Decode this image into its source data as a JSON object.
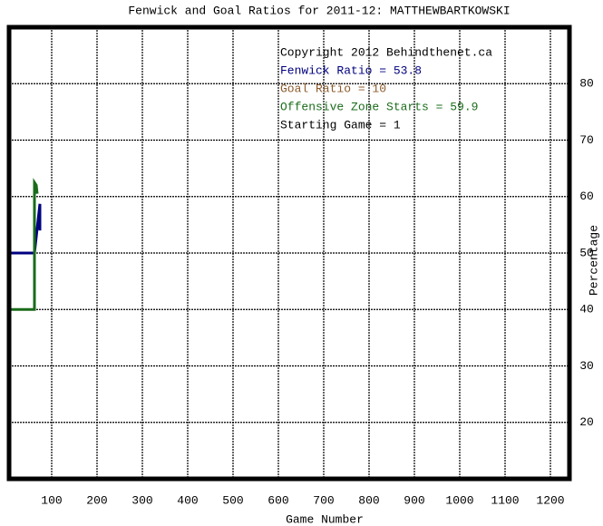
{
  "chart_data": {
    "type": "line",
    "title": "Fenwick and Goal Ratios for 2011-12: MATTHEWBARTKOWSKI",
    "x_label": "Game Number",
    "y_label": "Percentage",
    "xlim": [
      6,
      1242
    ],
    "ylim": [
      10,
      90
    ],
    "xticks": [
      100,
      200,
      300,
      400,
      500,
      600,
      700,
      800,
      900,
      1000,
      1100,
      1200
    ],
    "yticks": [
      20,
      30,
      40,
      50,
      60,
      70,
      80
    ],
    "grid": true,
    "annotations": [
      {
        "text": "Copyright 2012 Behindthenet.ca",
        "color": "#000000"
      },
      {
        "text": "Fenwick Ratio = 53.8",
        "color": "#000080"
      },
      {
        "text": "Goal Ratio = 10",
        "color": "#8b5a2b"
      },
      {
        "text": "Offensive Zone Starts = 59.9",
        "color": "#1a6b1a"
      },
      {
        "text": "Starting Game = 1",
        "color": "#000000"
      }
    ],
    "series": [
      {
        "name": "Fenwick Ratio",
        "color": "#000080",
        "x": [
          6,
          62,
          74,
          74
        ],
        "values": [
          50,
          50,
          58.7,
          54
        ]
      },
      {
        "name": "Offensive Zone Starts",
        "color": "#1a6b1a",
        "x": [
          6,
          62,
          62,
          66,
          68
        ],
        "values": [
          40,
          40,
          62.5,
          62,
          60.5
        ]
      }
    ]
  }
}
